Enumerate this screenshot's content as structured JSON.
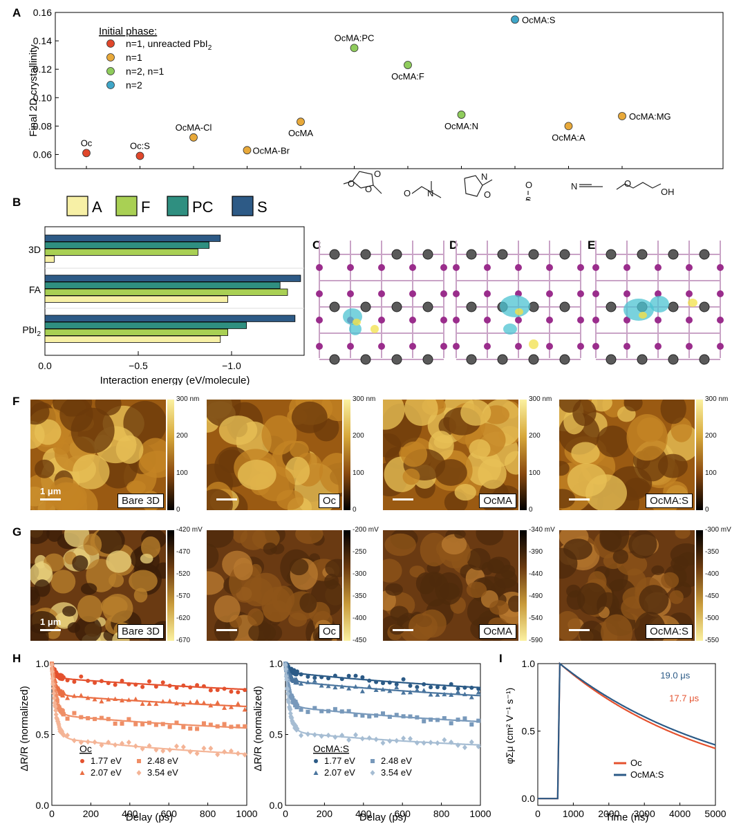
{
  "panel_letters": [
    "A",
    "B",
    "C",
    "D",
    "E",
    "F",
    "G",
    "H",
    "I"
  ],
  "chart_data": [
    {
      "id": "A",
      "type": "scatter",
      "ylabel": "Final 2D crystallinity",
      "ylim": [
        0.05,
        0.16
      ],
      "yticks": [
        "0.06",
        "0.08",
        "0.10",
        "0.12",
        "0.14",
        "0.16"
      ],
      "legend_title": "Initial phase:",
      "legend": [
        {
          "label": "n=1, unreacted PbI",
          "sub": "2",
          "color": "#e0472b"
        },
        {
          "label": "n=1",
          "sub": "",
          "color": "#e8a93a"
        },
        {
          "label": "n=2, n=1",
          "sub": "",
          "color": "#8fcc5c"
        },
        {
          "label": "n=2",
          "sub": "",
          "color": "#3fa6c8"
        }
      ],
      "points": [
        {
          "label": "Oc",
          "x": 1,
          "y": 0.061,
          "color": "#e0472b"
        },
        {
          "label": "Oc:S",
          "x": 2,
          "y": 0.059,
          "color": "#e0472b"
        },
        {
          "label": "OcMA-Cl",
          "x": 3,
          "y": 0.072,
          "color": "#e8a93a"
        },
        {
          "label": "OcMA-Br",
          "x": 4,
          "y": 0.063,
          "color": "#e8a93a"
        },
        {
          "label": "OcMA",
          "x": 5,
          "y": 0.083,
          "color": "#e8a93a"
        },
        {
          "label": "OcMA:PC",
          "x": 6,
          "y": 0.135,
          "color": "#8fcc5c"
        },
        {
          "label": "OcMA:F",
          "x": 7,
          "y": 0.123,
          "color": "#8fcc5c"
        },
        {
          "label": "OcMA:N",
          "x": 8,
          "y": 0.088,
          "color": "#8fcc5c"
        },
        {
          "label": "OcMA:S",
          "x": 9,
          "y": 0.155,
          "color": "#3fa6c8"
        },
        {
          "label": "OcMA:A",
          "x": 10,
          "y": 0.08,
          "color": "#e8a93a"
        },
        {
          "label": "OcMA:MG",
          "x": 11,
          "y": 0.087,
          "color": "#e8a93a"
        }
      ],
      "molecule_labels": [
        "O",
        "O",
        "O",
        "O",
        "N",
        "N",
        "O",
        "O",
        "S",
        "N",
        "O",
        "OH"
      ]
    },
    {
      "id": "B",
      "type": "bar",
      "orientation": "horizontal",
      "categories": [
        "3D",
        "FA",
        "PbI"
      ],
      "category_subs": [
        "",
        "",
        "2"
      ],
      "xlabel": "Interaction energy (eV/molecule)",
      "xlim": [
        0,
        -1.4
      ],
      "xticks": [
        "0.0",
        "−0.5",
        "−1.0"
      ],
      "series": [
        {
          "name": "A",
          "color": "#f7f0a6",
          "values": [
            -0.05,
            -0.98,
            -0.94
          ]
        },
        {
          "name": "F",
          "color": "#a9d054",
          "values": [
            -0.82,
            -1.3,
            -0.98
          ]
        },
        {
          "name": "PC",
          "color": "#2f8f80",
          "values": [
            -0.88,
            -1.26,
            -1.08
          ]
        },
        {
          "name": "S",
          "color": "#2d5a86",
          "values": [
            -0.94,
            -1.37,
            -1.34
          ]
        }
      ]
    },
    {
      "id": "F",
      "type": "heatmap",
      "maps": [
        {
          "label": "Bare 3D",
          "scalebar": "1 μm"
        },
        {
          "label": "Oc",
          "scalebar": ""
        },
        {
          "label": "OcMA",
          "scalebar": ""
        },
        {
          "label": "OcMA:S",
          "scalebar": ""
        }
      ],
      "colorbar": [
        "300 nm",
        "200",
        "100",
        "0"
      ]
    },
    {
      "id": "G",
      "type": "heatmap",
      "maps": [
        {
          "label": "Bare 3D",
          "scalebar": "1 μm",
          "colorbar": [
            "-420 mV",
            "-470",
            "-520",
            "-570",
            "-620",
            "-670"
          ]
        },
        {
          "label": "Oc",
          "scalebar": "",
          "colorbar": [
            "-200 mV",
            "-250",
            "-300",
            "-350",
            "-400",
            "-450"
          ]
        },
        {
          "label": "OcMA",
          "scalebar": "",
          "colorbar": [
            "-340 mV",
            "-390",
            "-440",
            "-490",
            "-540",
            "-590"
          ]
        },
        {
          "label": "OcMA:S",
          "scalebar": "",
          "colorbar": [
            "-300 mV",
            "-350",
            "-400",
            "-450",
            "-500",
            "-550"
          ]
        }
      ]
    },
    {
      "id": "H",
      "type": "line",
      "xlabel": "Delay (ps)",
      "ylabel": "ΔR/R (normalized)",
      "xlim": [
        0,
        1000
      ],
      "ylim": [
        0,
        1.0
      ],
      "xticks": [
        "0",
        "200",
        "400",
        "600",
        "800",
        "1000"
      ],
      "yticks": [
        "0.0",
        "0.5",
        "1.0"
      ],
      "subplots": [
        {
          "name": "Oc",
          "series": [
            {
              "name": "1.77 eV",
              "marker": "circle",
              "color": "#e4512e",
              "plateau": 0.84,
              "fast": 0.1
            },
            {
              "name": "2.07 eV",
              "marker": "triangle",
              "color": "#ea6e43",
              "plateau": 0.71,
              "fast": 0.22
            },
            {
              "name": "2.48 eV",
              "marker": "square",
              "color": "#ef8e66",
              "plateau": 0.54,
              "fast": 0.36
            },
            {
              "name": "3.54 eV",
              "marker": "diamond",
              "color": "#f4b496",
              "plateau": 0.33,
              "fast": 0.52
            }
          ]
        },
        {
          "name": "OcMA:S",
          "series": [
            {
              "name": "1.77 eV",
              "marker": "circle",
              "color": "#2b5a86",
              "plateau": 0.84,
              "fast": 0.06
            },
            {
              "name": "2.07 eV",
              "marker": "triangle",
              "color": "#4a759e",
              "plateau": 0.78,
              "fast": 0.12
            },
            {
              "name": "2.48 eV",
              "marker": "square",
              "color": "#7899bb",
              "plateau": 0.58,
              "fast": 0.3
            },
            {
              "name": "3.54 eV",
              "marker": "diamond",
              "color": "#a6bdd3",
              "plateau": 0.41,
              "fast": 0.48
            }
          ]
        }
      ]
    },
    {
      "id": "I",
      "type": "line",
      "xlabel": "Time (ns)",
      "ylabel": "φΣμ (cm² V⁻¹ s⁻¹)",
      "xlim": [
        0,
        5000
      ],
      "ylim": [
        0,
        1.0
      ],
      "xticks": [
        "0",
        "1000",
        "2000",
        "3000",
        "4000",
        "5000"
      ],
      "yticks": [
        "0.0",
        "0.5",
        "1.0"
      ],
      "series": [
        {
          "name": "Oc",
          "color": "#e4512e",
          "lifetime": "17.7 μs",
          "tau": 17700,
          "onset": 560
        },
        {
          "name": "OcMA:S",
          "color": "#2b5a86",
          "lifetime": "19.0 μs",
          "tau": 19000,
          "onset": 560
        }
      ]
    }
  ]
}
